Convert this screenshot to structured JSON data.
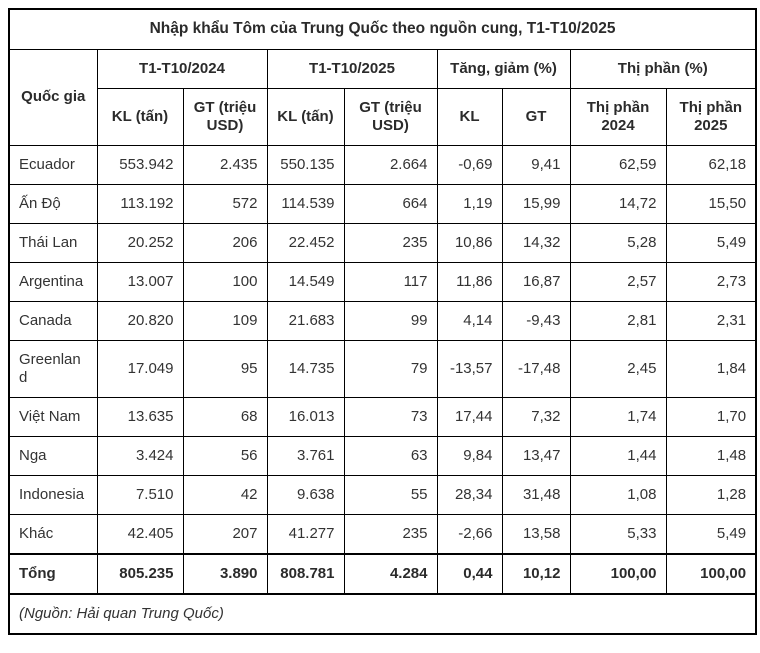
{
  "colors": {
    "background": "#ffffff",
    "border": "#000000",
    "text": "#333333"
  },
  "chart_data": {
    "type": "table",
    "title": "Nhập khẩu Tôm của Trung Quốc theo nguồn cung, T1-T10/2025",
    "column_groups": [
      {
        "label": "Quốc gia",
        "colspan": 1,
        "rowspan": 2
      },
      {
        "label": "T1-T10/2024",
        "colspan": 2
      },
      {
        "label": "T1-T10/2025",
        "colspan": 2
      },
      {
        "label": "Tăng, giảm (%)",
        "colspan": 2
      },
      {
        "label": "Thị phần (%)",
        "colspan": 2
      }
    ],
    "sub_columns": [
      "KL (tấn)",
      "GT (triệu USD)",
      "KL (tấn)",
      "GT (triệu USD)",
      "KL",
      "GT",
      "Thị phần 2024",
      "Thị phần 2025"
    ],
    "rows": [
      [
        "Ecuador",
        "553.942",
        "2.435",
        "550.135",
        "2.664",
        "-0,69",
        "9,41",
        "62,59",
        "62,18"
      ],
      [
        "Ấn Độ",
        "113.192",
        "572",
        "114.539",
        "664",
        "1,19",
        "15,99",
        "14,72",
        "15,50"
      ],
      [
        "Thái Lan",
        "20.252",
        "206",
        "22.452",
        "235",
        "10,86",
        "14,32",
        "5,28",
        "5,49"
      ],
      [
        "Argentina",
        "13.007",
        "100",
        "14.549",
        "117",
        "11,86",
        "16,87",
        "2,57",
        "2,73"
      ],
      [
        "Canada",
        "20.820",
        "109",
        "21.683",
        "99",
        "4,14",
        "-9,43",
        "2,81",
        "2,31"
      ],
      [
        "Greenland",
        "17.049",
        "95",
        "14.735",
        "79",
        "-13,57",
        "-17,48",
        "2,45",
        "1,84"
      ],
      [
        "Việt Nam",
        "13.635",
        "68",
        "16.013",
        "73",
        "17,44",
        "7,32",
        "1,74",
        "1,70"
      ],
      [
        "Nga",
        "3.424",
        "56",
        "3.761",
        "63",
        "9,84",
        "13,47",
        "1,44",
        "1,48"
      ],
      [
        "Indonesia",
        "7.510",
        "42",
        "9.638",
        "55",
        "28,34",
        "31,48",
        "1,08",
        "1,28"
      ],
      [
        "Khác",
        "42.405",
        "207",
        "41.277",
        "235",
        "-2,66",
        "13,58",
        "5,33",
        "5,49"
      ]
    ],
    "total_row": [
      "Tổng",
      "805.235",
      "3.890",
      "808.781",
      "4.284",
      "0,44",
      "10,12",
      "100,00",
      "100,00"
    ],
    "source": "(Nguồn: Hải quan Trung Quốc)"
  }
}
